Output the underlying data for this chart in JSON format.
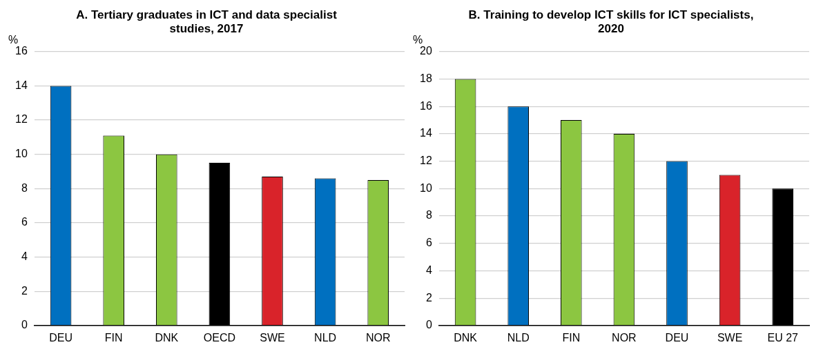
{
  "chart_data": [
    {
      "type": "bar",
      "title": "A. Tertiary graduates in ICT and data specialist studies, 2017",
      "ylabel": "%",
      "categories": [
        "DEU",
        "FIN",
        "DNK",
        "OECD",
        "SWE",
        "NLD",
        "NOR"
      ],
      "values": [
        14,
        11.1,
        10,
        9.5,
        8.7,
        8.6,
        8.5
      ],
      "colors": [
        "#0070c0",
        "#8cc641",
        "#8cc641",
        "#000000",
        "#d9232a",
        "#0070c0",
        "#8cc641"
      ],
      "ylim": [
        0,
        16
      ],
      "yticks": [
        0,
        2,
        4,
        6,
        8,
        10,
        12,
        14,
        16
      ],
      "grid": "y",
      "legend": false
    },
    {
      "type": "bar",
      "title": "B. Training to develop ICT skills for ICT specialists, 2020",
      "ylabel": "%",
      "categories": [
        "DNK",
        "NLD",
        "FIN",
        "NOR",
        "DEU",
        "SWE",
        "EU 27"
      ],
      "values": [
        18,
        16,
        15,
        14,
        12,
        11,
        10
      ],
      "colors": [
        "#8cc641",
        "#0070c0",
        "#8cc641",
        "#8cc641",
        "#0070c0",
        "#d9232a",
        "#000000"
      ],
      "ylim": [
        0,
        20
      ],
      "yticks": [
        0,
        2,
        4,
        6,
        8,
        10,
        12,
        14,
        16,
        18,
        20
      ],
      "grid": "y",
      "legend": false
    }
  ]
}
